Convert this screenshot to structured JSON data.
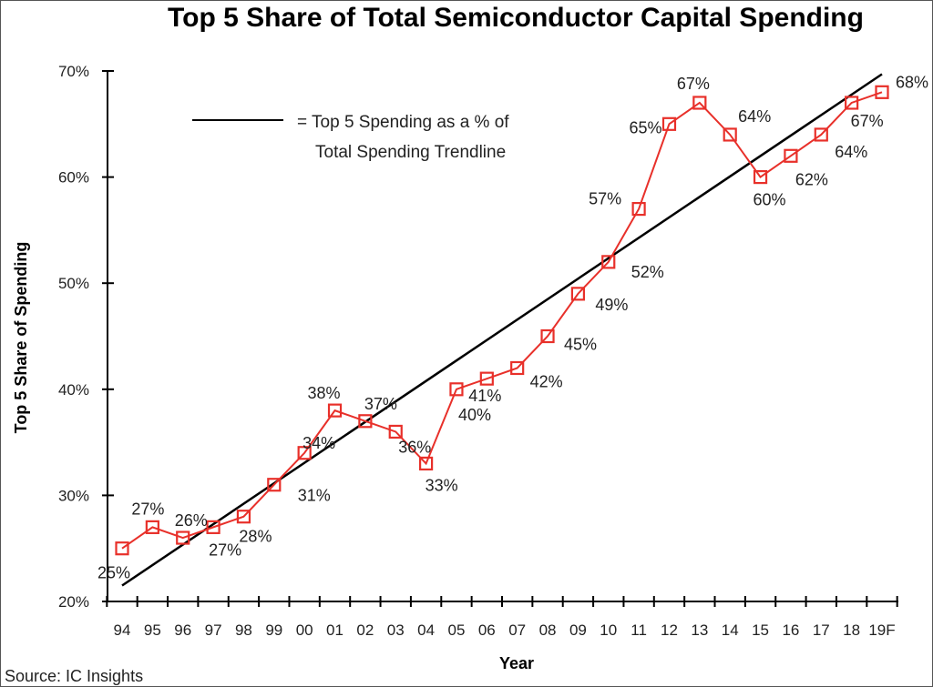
{
  "chart_data": {
    "type": "line",
    "title": "Top 5 Share of Total Semiconductor Capital Spending",
    "xlabel": "Year",
    "ylabel": "Top 5 Share of Spending",
    "categories": [
      "94",
      "95",
      "96",
      "97",
      "98",
      "99",
      "00",
      "01",
      "02",
      "03",
      "04",
      "05",
      "06",
      "07",
      "08",
      "09",
      "10",
      "11",
      "12",
      "13",
      "14",
      "15",
      "16",
      "17",
      "18",
      "19F"
    ],
    "series": [
      {
        "values": [
          25,
          27,
          26,
          27,
          28,
          31,
          34,
          38,
          37,
          36,
          33,
          40,
          41,
          42,
          45,
          49,
          52,
          57,
          65,
          67,
          64,
          60,
          62,
          64,
          67,
          68
        ],
        "labels": [
          "25%",
          "27%",
          "26%",
          "27%",
          "28%",
          "31%",
          "34%",
          "38%",
          "37%",
          "36%",
          "33%",
          "40%",
          "41%",
          "42%",
          "45%",
          "49%",
          "52%",
          "57%",
          "65%",
          "67%",
          "64%",
          "60%",
          "62%",
          "64%",
          "67%",
          "68%"
        ],
        "color": "#e8302a"
      }
    ],
    "trendline": {
      "name": "Top 5 Spending as a % of Total Spending Trendline",
      "start": [
        0,
        21.5
      ],
      "end": [
        25,
        69.7
      ],
      "color": "#000000"
    },
    "legend": {
      "line1": "= Top 5 Spending as a % of",
      "line2": "Total Spending Trendline",
      "position": "top-left"
    },
    "yticks": [
      "20%",
      "30%",
      "40%",
      "50%",
      "60%",
      "70%"
    ],
    "ylim": [
      20,
      70
    ],
    "grid": false
  },
  "source": "Source: IC Insights"
}
